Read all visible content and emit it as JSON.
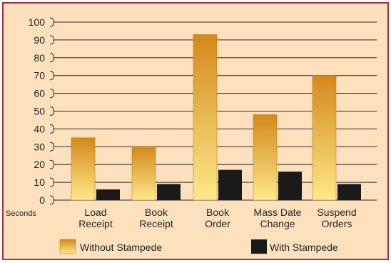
{
  "chart_data": {
    "type": "bar",
    "title": "",
    "xlabel": "",
    "ylabel": "Seconds",
    "ylim": [
      0,
      100
    ],
    "yticks": [
      0,
      10,
      20,
      30,
      40,
      50,
      60,
      70,
      80,
      90,
      100
    ],
    "grid": true,
    "legend_position": "bottom",
    "categories": [
      [
        "Load",
        "Receipt"
      ],
      [
        "Book",
        "Receipt"
      ],
      [
        "Book",
        "Order"
      ],
      [
        "Mass Date",
        "Change"
      ],
      [
        "Suspend",
        "Orders"
      ]
    ],
    "series": [
      {
        "name": "Without Stampede",
        "values": [
          35,
          30,
          93,
          48,
          70
        ]
      },
      {
        "name": "With Stampede",
        "values": [
          6,
          9,
          17,
          16,
          9
        ]
      }
    ],
    "colors": {
      "background": "#fde1bd",
      "border": "#b32a3c",
      "without_top": "#d4891a",
      "without_bottom": "#fde98a",
      "with": "#1a1a1a",
      "grid": "#2b2b2b"
    }
  }
}
